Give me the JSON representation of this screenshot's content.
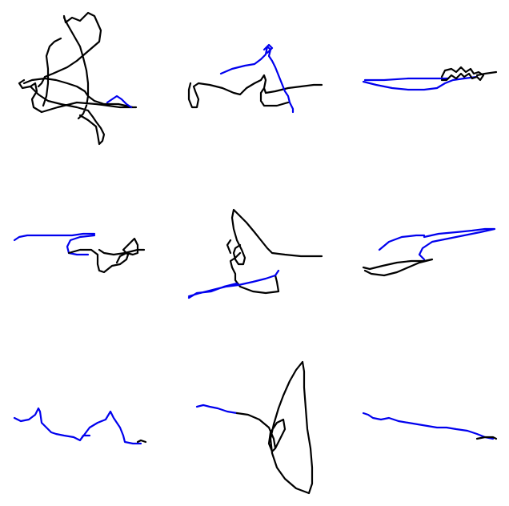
{
  "colors": {
    "ink": "#000000",
    "highlight": "#0000ee",
    "background": "#ffffff"
  },
  "panels": [
    {
      "id": "sketch-1"
    },
    {
      "id": "sketch-2"
    },
    {
      "id": "sketch-3"
    },
    {
      "id": "sketch-4"
    },
    {
      "id": "sketch-5"
    },
    {
      "id": "sketch-6"
    },
    {
      "id": "sketch-7"
    },
    {
      "id": "sketch-8"
    },
    {
      "id": "sketch-9"
    }
  ]
}
